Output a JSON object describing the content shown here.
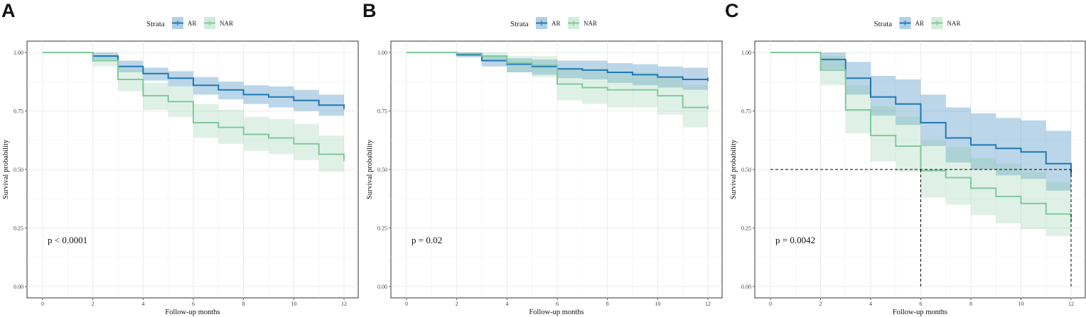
{
  "colors": {
    "AR": "#1f78b4",
    "NAR": "#7fc99b",
    "AR_band": "#1f78b4",
    "NAR_band": "#7fc99b",
    "median_line": "#000000"
  },
  "legend": {
    "title": "Strata",
    "entries": [
      "AR",
      "NAR"
    ]
  },
  "chart_data": [
    {
      "type": "line",
      "panel": "A",
      "subtype": "kaplan-meier survival curve",
      "xlabel": "Follow-up months",
      "ylabel": "Survival probability",
      "xlim": [
        0,
        12
      ],
      "ylim": [
        0,
        1
      ],
      "xticks": [
        0,
        2,
        4,
        6,
        8,
        10,
        12
      ],
      "xtick_labels": [
        "0",
        "2",
        "4",
        "6",
        "8",
        "10",
        "12"
      ],
      "yticks": [
        0,
        0.25,
        0.5,
        0.75,
        1
      ],
      "ytick_labels": [
        "0.00",
        "0.25",
        "0.50",
        "0.75",
        "1.00"
      ],
      "annotation": "p < 0.0001",
      "median_lines": [],
      "series": [
        {
          "name": "AR",
          "times": [
            0,
            2,
            3,
            4,
            5,
            6,
            7,
            8,
            9,
            10,
            11,
            12
          ],
          "surv": [
            1.0,
            0.985,
            0.94,
            0.91,
            0.89,
            0.86,
            0.84,
            0.82,
            0.81,
            0.795,
            0.775,
            0.765
          ],
          "lower": [
            1.0,
            0.97,
            0.915,
            0.88,
            0.855,
            0.82,
            0.8,
            0.78,
            0.765,
            0.75,
            0.73,
            0.72
          ],
          "upper": [
            1.0,
            1.0,
            0.965,
            0.935,
            0.92,
            0.895,
            0.875,
            0.86,
            0.855,
            0.84,
            0.82,
            0.81
          ]
        },
        {
          "name": "NAR",
          "times": [
            0,
            2,
            3,
            4,
            5,
            6,
            7,
            8,
            9,
            10,
            11,
            12
          ],
          "surv": [
            1.0,
            0.965,
            0.885,
            0.815,
            0.79,
            0.7,
            0.68,
            0.65,
            0.635,
            0.61,
            0.565,
            0.545
          ],
          "lower": [
            1.0,
            0.94,
            0.835,
            0.755,
            0.725,
            0.635,
            0.61,
            0.58,
            0.565,
            0.54,
            0.49,
            0.485
          ],
          "upper": [
            1.0,
            0.985,
            0.93,
            0.87,
            0.855,
            0.78,
            0.755,
            0.725,
            0.715,
            0.695,
            0.645,
            0.625
          ]
        }
      ]
    },
    {
      "type": "line",
      "panel": "B",
      "subtype": "kaplan-meier survival curve",
      "xlabel": "Follow-up months",
      "ylabel": "Survival probability",
      "xlim": [
        0,
        12
      ],
      "ylim": [
        0,
        1
      ],
      "xticks": [
        0,
        2,
        4,
        6,
        8,
        10,
        12
      ],
      "xtick_labels": [
        "0",
        "2",
        "4",
        "6",
        "8",
        "10",
        "12"
      ],
      "yticks": [
        0,
        0.25,
        0.5,
        0.75,
        1
      ],
      "ytick_labels": [
        "0.00",
        "0.25",
        "0.50",
        "0.75",
        "1.00"
      ],
      "annotation": "p = 0.02",
      "median_lines": [],
      "series": [
        {
          "name": "AR",
          "times": [
            0,
            2,
            3,
            4,
            5,
            6,
            7,
            8,
            9,
            10,
            11,
            12
          ],
          "surv": [
            1.0,
            0.99,
            0.965,
            0.95,
            0.94,
            0.93,
            0.925,
            0.915,
            0.905,
            0.895,
            0.885,
            0.885
          ],
          "lower": [
            1.0,
            0.98,
            0.94,
            0.915,
            0.905,
            0.89,
            0.885,
            0.87,
            0.86,
            0.85,
            0.84,
            0.84
          ],
          "upper": [
            1.0,
            1.0,
            0.985,
            0.975,
            0.97,
            0.965,
            0.965,
            0.955,
            0.95,
            0.94,
            0.935,
            0.935
          ]
        },
        {
          "name": "NAR",
          "times": [
            0,
            2,
            3,
            4,
            5,
            6,
            7,
            8,
            9,
            10,
            11,
            12
          ],
          "surv": [
            1.0,
            0.995,
            0.985,
            0.955,
            0.945,
            0.865,
            0.85,
            0.84,
            0.84,
            0.815,
            0.765,
            0.765
          ],
          "lower": [
            1.0,
            0.985,
            0.965,
            0.915,
            0.895,
            0.795,
            0.78,
            0.765,
            0.765,
            0.735,
            0.68,
            0.68
          ],
          "upper": [
            1.0,
            1.0,
            1.0,
            0.985,
            0.985,
            0.935,
            0.925,
            0.915,
            0.915,
            0.895,
            0.86,
            0.86
          ]
        }
      ]
    },
    {
      "type": "line",
      "panel": "C",
      "subtype": "kaplan-meier survival curve",
      "xlabel": "Follow-up months",
      "ylabel": "Survival probability",
      "xlim": [
        0,
        12
      ],
      "ylim": [
        0,
        1
      ],
      "xticks": [
        0,
        2,
        4,
        6,
        8,
        10,
        12
      ],
      "xtick_labels": [
        "0",
        "2",
        "4",
        "6",
        "8",
        "10",
        "12"
      ],
      "yticks": [
        0,
        0.25,
        0.5,
        0.75,
        1
      ],
      "ytick_labels": [
        "0.00",
        "0.25",
        "0.50",
        "0.75",
        "1.00"
      ],
      "annotation": "p = 0.0042",
      "median_lines": [
        {
          "x_from": 0,
          "x_to": 12,
          "y": 0.5
        },
        {
          "x": 6,
          "y_from": 0,
          "y_to": 0.5
        },
        {
          "x": 12,
          "y_from": 0,
          "y_to": 0.5
        }
      ],
      "series": [
        {
          "name": "AR",
          "times": [
            0,
            2,
            3,
            4,
            5,
            6,
            7,
            8,
            9,
            10,
            11,
            12
          ],
          "surv": [
            1.0,
            0.97,
            0.89,
            0.81,
            0.78,
            0.7,
            0.635,
            0.605,
            0.59,
            0.575,
            0.525,
            0.48
          ],
          "lower": [
            1.0,
            0.93,
            0.82,
            0.73,
            0.69,
            0.6,
            0.53,
            0.5,
            0.475,
            0.46,
            0.41,
            0.37
          ],
          "upper": [
            1.0,
            1.0,
            0.96,
            0.9,
            0.885,
            0.82,
            0.765,
            0.74,
            0.72,
            0.71,
            0.665,
            0.645
          ]
        },
        {
          "name": "NAR",
          "times": [
            0,
            2,
            3,
            4,
            5,
            6,
            7,
            8,
            9,
            10,
            11,
            12
          ],
          "surv": [
            1.0,
            0.925,
            0.755,
            0.645,
            0.6,
            0.495,
            0.465,
            0.42,
            0.385,
            0.355,
            0.31,
            0.28
          ],
          "lower": [
            1.0,
            0.86,
            0.655,
            0.535,
            0.49,
            0.38,
            0.35,
            0.305,
            0.27,
            0.245,
            0.215,
            0.195
          ],
          "upper": [
            1.0,
            0.985,
            0.86,
            0.77,
            0.725,
            0.625,
            0.595,
            0.55,
            0.525,
            0.49,
            0.445,
            0.42
          ]
        }
      ]
    }
  ]
}
